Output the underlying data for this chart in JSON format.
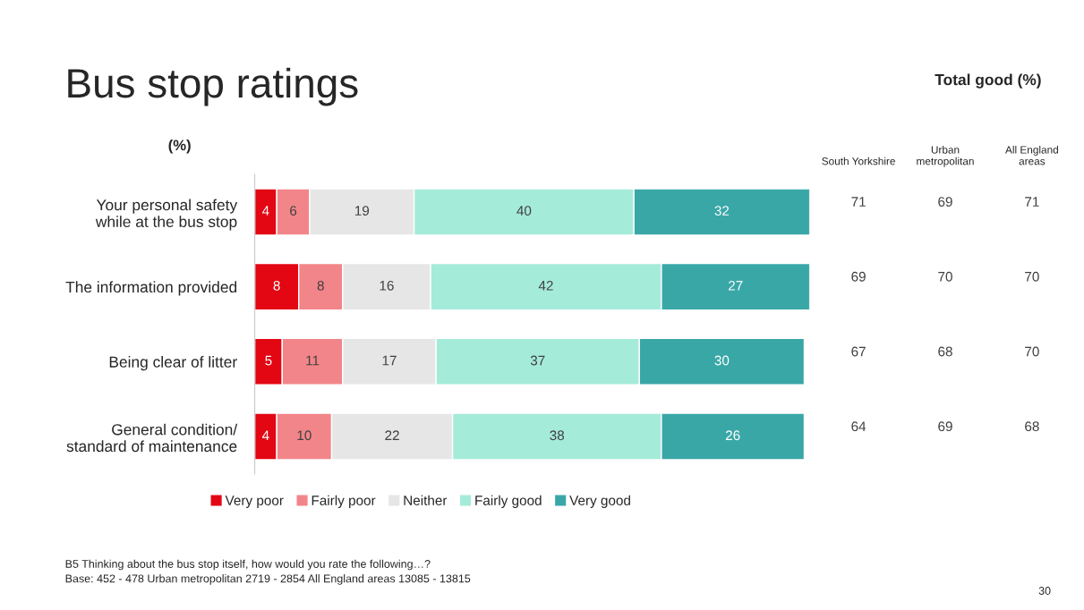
{
  "chart_data": [
    {
      "type": "bar",
      "orientation": "horizontal",
      "stacked": true,
      "title": "Bus stop ratings",
      "data_labels": true,
      "legend": "bottom",
      "categories": [
        "Your personal safety\nwhile at the bus stop",
        "The information provided",
        "Being clear of litter",
        "General condition/\nstandard of maintenance"
      ],
      "series": [
        {
          "name": "Very poor",
          "color": "#e30613",
          "values": [
            4,
            8,
            5,
            4
          ]
        },
        {
          "name": "Fairly poor",
          "color": "#f28589",
          "values": [
            6,
            8,
            11,
            10
          ]
        },
        {
          "name": "Neither",
          "color": "#e6e6e6",
          "values": [
            19,
            16,
            17,
            22
          ]
        },
        {
          "name": "Fairly good",
          "color": "#a5ebda",
          "values": [
            40,
            42,
            37,
            38
          ]
        },
        {
          "name": "Very good",
          "color": "#3aa7a7",
          "values": [
            32,
            27,
            30,
            26
          ]
        }
      ],
      "annotations": [
        "(%)",
        "B5 Thinking about the bus stop itself, how would you rate the following…?",
        "Base: 452 - 478 Urban metropolitan 2719 - 2854 All England areas 13085 - 13815",
        "30"
      ]
    },
    {
      "type": "heatmap",
      "title": "Total good (%)",
      "data_labels": true,
      "categories": [
        "South Yorkshire",
        "Urban\nmetropolitan",
        "All England\nareas"
      ],
      "y_categories": [
        null,
        null,
        null,
        null
      ],
      "cells": [
        [
          71,
          69,
          71
        ],
        [
          69,
          70,
          70
        ],
        [
          67,
          68,
          70
        ],
        [
          64,
          69,
          68
        ]
      ]
    }
  ]
}
